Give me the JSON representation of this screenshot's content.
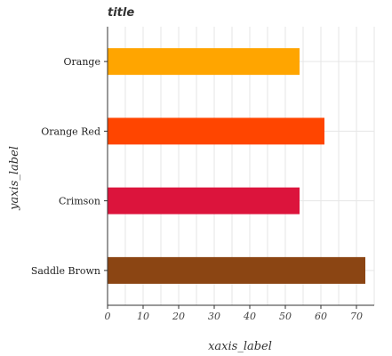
{
  "chart_data": {
    "type": "bar",
    "orientation": "horizontal",
    "title": "title",
    "xlabel": "xaxis_label",
    "ylabel": "yaxis_label",
    "categories": [
      "Saddle Brown",
      "Crimson",
      "Orange Red",
      "Orange"
    ],
    "values": [
      72.5,
      54,
      61,
      54
    ],
    "colors": [
      "#8b4513",
      "#dc143c",
      "#ff4500",
      "#ffa500"
    ],
    "xlim": [
      0,
      75
    ],
    "xticks": [
      0,
      10,
      20,
      30,
      40,
      50,
      60,
      70
    ],
    "xtick_labels": [
      "0",
      "10",
      "20",
      "30",
      "40",
      "50",
      "60",
      "70"
    ],
    "grid": true,
    "legend": "none"
  }
}
